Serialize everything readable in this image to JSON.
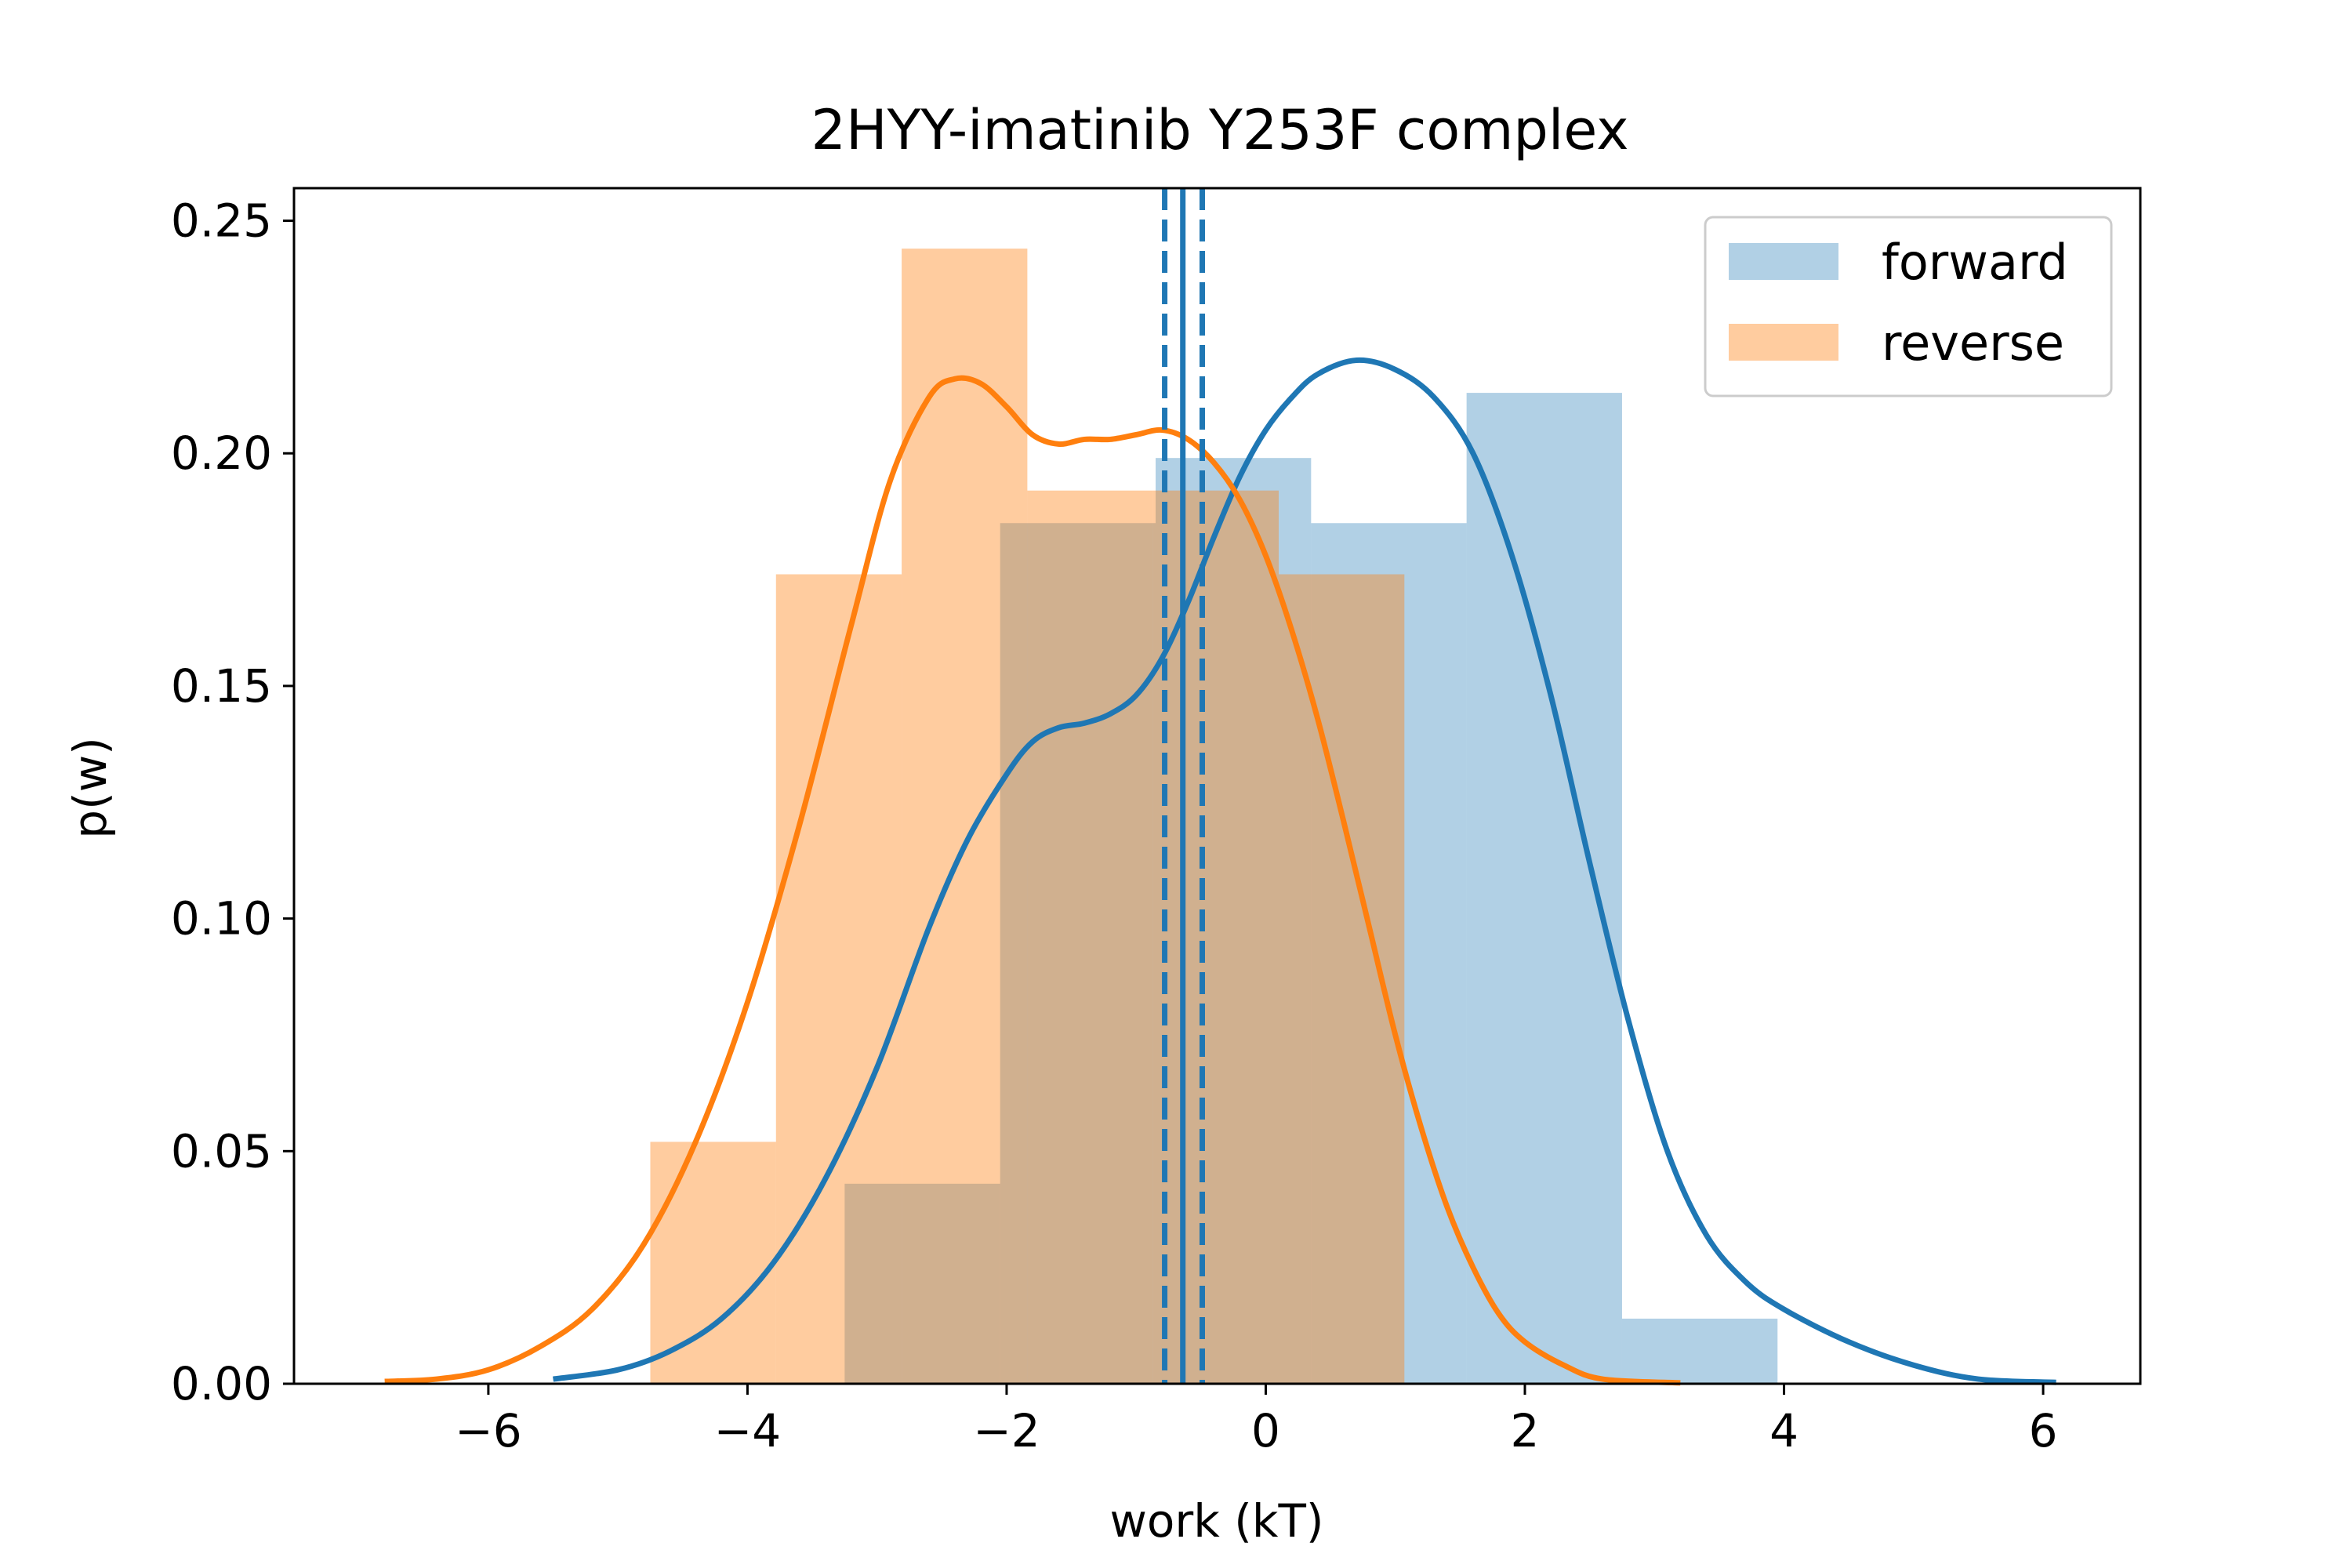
{
  "chart_data": {
    "type": "histogram",
    "title": "2HYY-imatinib Y253F complex",
    "xlabel": "work (kT)",
    "ylabel": "p(w)",
    "xlim": [
      -7.5,
      6.75
    ],
    "ylim": [
      0,
      0.257
    ],
    "x_ticks": [
      -6,
      -4,
      -2,
      0,
      2,
      4,
      6
    ],
    "x_tick_labels": [
      "−6",
      "−4",
      "−2",
      "0",
      "2",
      "4",
      "6"
    ],
    "y_ticks": [
      0.0,
      0.05,
      0.1,
      0.15,
      0.2,
      0.25
    ],
    "y_tick_labels": [
      "0.00",
      "0.05",
      "0.10",
      "0.15",
      "0.20",
      "0.25"
    ],
    "legend": {
      "position": "top-right",
      "entries": [
        "forward",
        "reverse"
      ]
    },
    "grid": false,
    "colors": {
      "forward": "#1f77b4",
      "reverse": "#ff7f0e",
      "overlap": "#cfab87"
    },
    "series": [
      {
        "name": "forward",
        "bin_edges": [
          -3.25,
          -2.05,
          -0.85,
          0.35,
          1.55,
          2.75,
          3.95
        ],
        "heights": [
          0.043,
          0.185,
          0.199,
          0.185,
          0.213,
          0.014
        ],
        "kde": {
          "x": [
            -5.5,
            -5.0,
            -4.6,
            -4.2,
            -3.8,
            -3.4,
            -3.0,
            -2.6,
            -2.3,
            -2.0,
            -1.8,
            -1.6,
            -1.4,
            -1.2,
            -1.0,
            -0.8,
            -0.6,
            -0.4,
            -0.2,
            0.0,
            0.2,
            0.4,
            0.7,
            1.0,
            1.3,
            1.6,
            1.9,
            2.2,
            2.5,
            2.8,
            3.1,
            3.4,
            3.7,
            4.0,
            4.5,
            5.0,
            5.5,
            6.1
          ],
          "y": [
            0.001,
            0.003,
            0.007,
            0.014,
            0.026,
            0.044,
            0.068,
            0.098,
            0.117,
            0.131,
            0.138,
            0.141,
            0.142,
            0.144,
            0.148,
            0.156,
            0.168,
            0.182,
            0.195,
            0.205,
            0.212,
            0.217,
            0.22,
            0.218,
            0.212,
            0.2,
            0.178,
            0.148,
            0.112,
            0.078,
            0.05,
            0.032,
            0.022,
            0.016,
            0.009,
            0.004,
            0.001,
            0.0003
          ]
        }
      },
      {
        "name": "reverse",
        "bin_edges": [
          -4.75,
          -3.78,
          -2.81,
          -1.84,
          -0.87,
          0.1,
          1.07
        ],
        "heights": [
          0.052,
          0.174,
          0.244,
          0.192,
          0.192,
          0.174
        ],
        "kde": {
          "x": [
            -6.8,
            -6.4,
            -6.0,
            -5.6,
            -5.2,
            -4.8,
            -4.4,
            -4.0,
            -3.6,
            -3.2,
            -2.9,
            -2.6,
            -2.4,
            -2.2,
            -2.0,
            -1.8,
            -1.6,
            -1.4,
            -1.2,
            -1.0,
            -0.8,
            -0.6,
            -0.4,
            -0.2,
            0.0,
            0.2,
            0.4,
            0.6,
            0.8,
            1.0,
            1.2,
            1.4,
            1.6,
            1.8,
            2.0,
            2.3,
            2.6,
            3.2
          ],
          "y": [
            0.0005,
            0.001,
            0.003,
            0.008,
            0.016,
            0.03,
            0.052,
            0.082,
            0.12,
            0.163,
            0.194,
            0.212,
            0.216,
            0.215,
            0.21,
            0.204,
            0.202,
            0.203,
            0.203,
            0.204,
            0.205,
            0.203,
            0.198,
            0.19,
            0.178,
            0.162,
            0.143,
            0.121,
            0.098,
            0.075,
            0.055,
            0.038,
            0.025,
            0.015,
            0.009,
            0.004,
            0.001,
            0.0002
          ]
        }
      }
    ],
    "vlines": [
      {
        "x": -0.64,
        "style": "solid",
        "color": "#1f77b4"
      },
      {
        "x": -0.78,
        "style": "dashed",
        "color": "#1f77b4"
      },
      {
        "x": -0.49,
        "style": "dashed",
        "color": "#1f77b4"
      }
    ]
  }
}
